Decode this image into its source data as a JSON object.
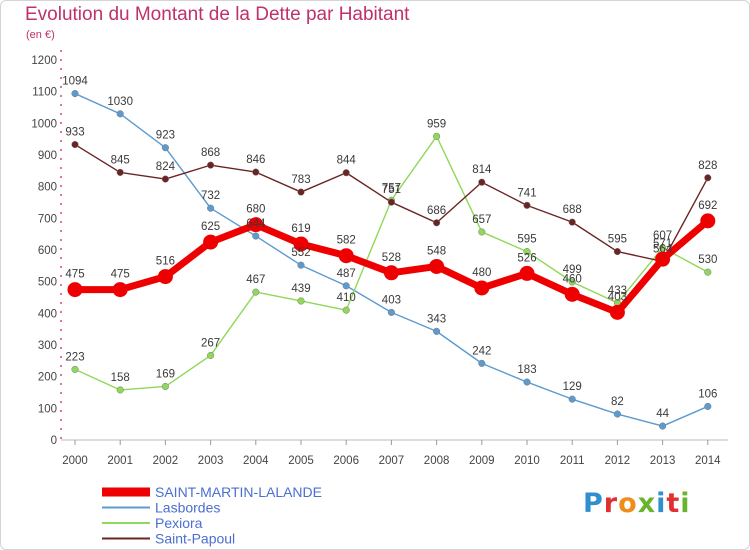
{
  "header": {
    "title": "Evolution du Montant de la Dette par Habitant",
    "unit": "(en €)"
  },
  "logo": {
    "text": "Proxiti",
    "letters": [
      {
        "ch": "P",
        "color": "#2f8fd0"
      },
      {
        "ch": "r",
        "color": "#e03030"
      },
      {
        "ch": "o",
        "color": "#f08c1a"
      },
      {
        "ch": "x",
        "color": "#6ab42d"
      },
      {
        "ch": "i",
        "color": "#2f8fd0"
      },
      {
        "ch": "t",
        "color": "#e03030"
      },
      {
        "ch": "i",
        "color": "#6ab42d"
      }
    ]
  },
  "chart_data": {
    "type": "line",
    "title": "Evolution du Montant de la Dette par Habitant",
    "ylabel": "(en €)",
    "xlabel": "",
    "ylim": [
      0,
      1200
    ],
    "yticks": [
      0,
      100,
      200,
      300,
      400,
      500,
      600,
      700,
      800,
      900,
      1000,
      1100,
      1200
    ],
    "grid": false,
    "legend": "bottom-left",
    "x": [
      "2000",
      "2001",
      "2002",
      "2003",
      "2004",
      "2005",
      "2006",
      "2007",
      "2008",
      "2009",
      "2010",
      "2011",
      "2012",
      "2013",
      "2014"
    ],
    "series": [
      {
        "name": "Lasbordes",
        "color": "#5b9bd0",
        "values": [
          1094,
          1030,
          923,
          732,
          644,
          552,
          487,
          403,
          343,
          242,
          183,
          129,
          82,
          44,
          106
        ]
      },
      {
        "name": "Pexiora",
        "color": "#8fd85a",
        "values": [
          223,
          158,
          169,
          267,
          467,
          439,
          410,
          757,
          959,
          657,
          595,
          499,
          433,
          607,
          530
        ]
      },
      {
        "name": "Saint-Papoul",
        "color": "#6b2424",
        "values": [
          933,
          845,
          824,
          868,
          846,
          783,
          844,
          751,
          686,
          814,
          741,
          688,
          595,
          564,
          828
        ]
      },
      {
        "name": "SAINT-MARTIN-LALANDE",
        "color": "#ee0000",
        "values": [
          475,
          475,
          516,
          625,
          680,
          619,
          582,
          528,
          548,
          480,
          526,
          460,
          403,
          571,
          692
        ]
      }
    ]
  }
}
